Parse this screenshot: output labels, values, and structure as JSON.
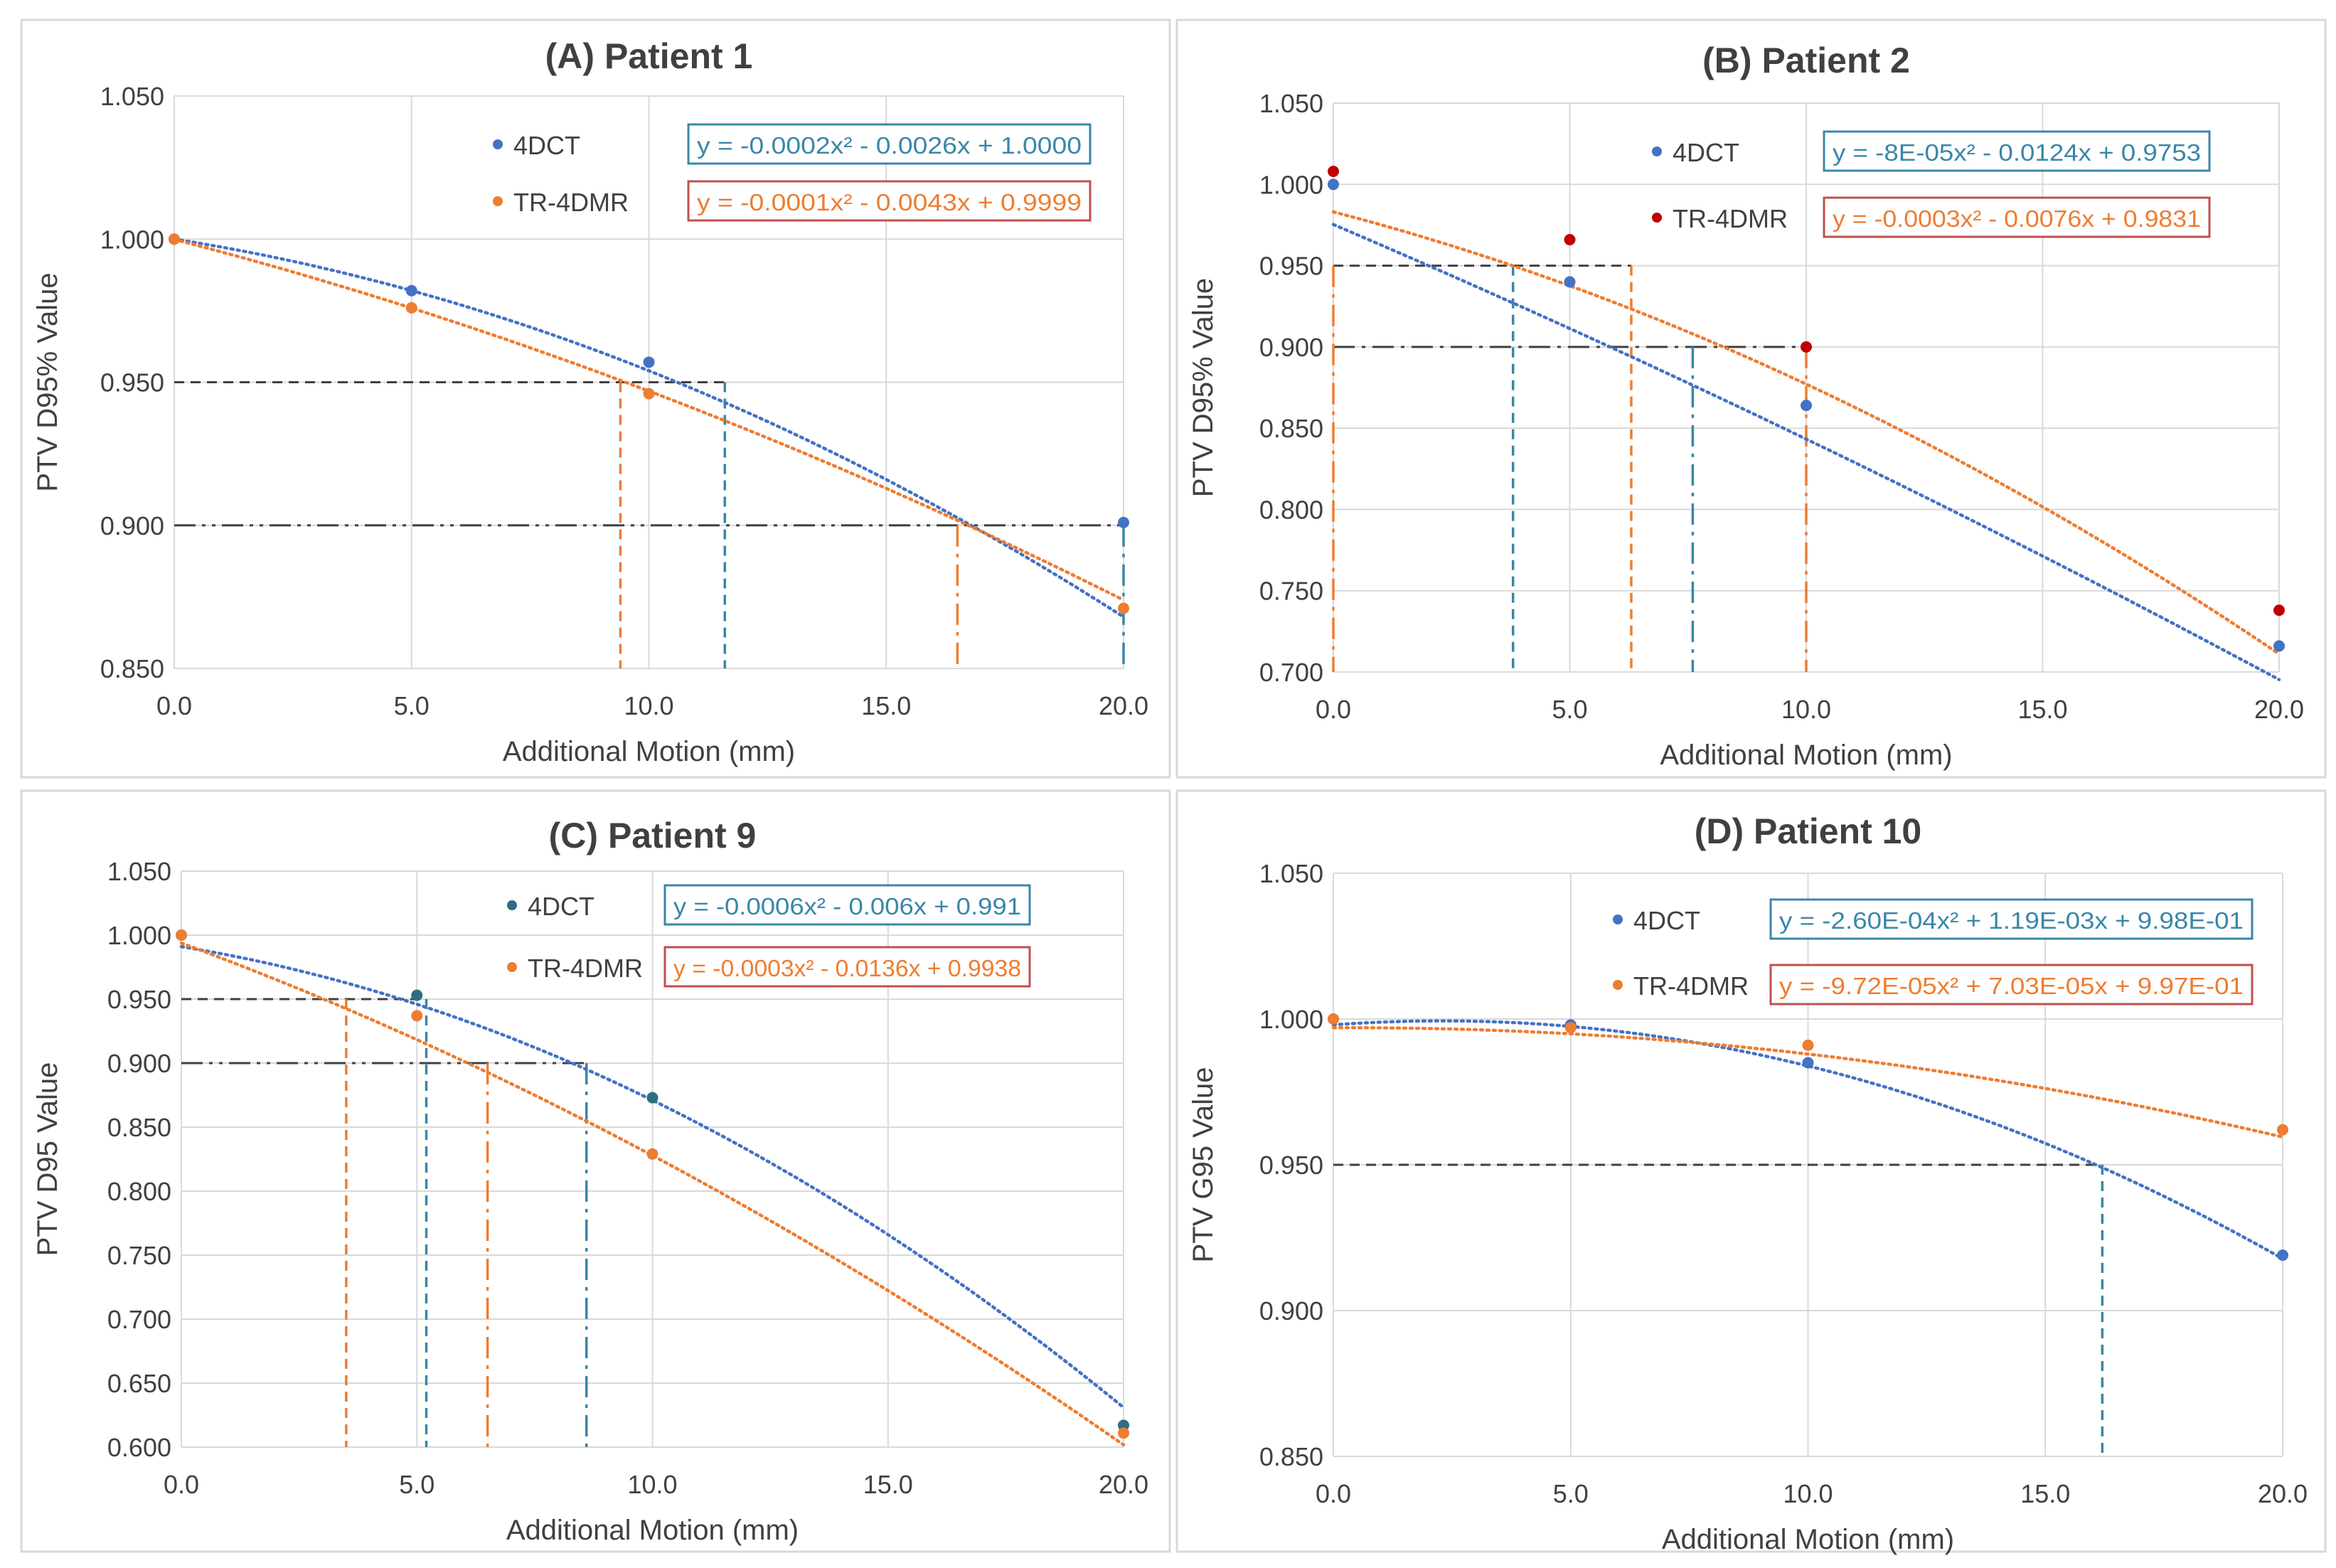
{
  "colors": {
    "series_4dct": "#4472C4",
    "series_tr4dmr": "#ED7D31",
    "marker_4dct_c": "#2E6E82",
    "marker_tr4dmr_b": "#C00000",
    "eq_box_4dct": "#3A86A8",
    "eq_box_tr4dmr": "#C0504D",
    "grid": "#D9D9D9",
    "text": "#404040",
    "guide_dark": "#404040"
  },
  "chart_data": [
    {
      "type": "scatter",
      "title": "(A) Patient 1",
      "xlabel": "Additional Motion (mm)",
      "ylabel": "PTV D95% Value",
      "xlim": [
        0,
        20
      ],
      "ylim": [
        0.85,
        1.05
      ],
      "xticks": [
        "0.0",
        "5.0",
        "10.0",
        "15.0",
        "20.0"
      ],
      "yticks": [
        "0.850",
        "0.900",
        "0.950",
        "1.000",
        "1.050"
      ],
      "grid": true,
      "series": [
        {
          "name": "4DCT",
          "x": [
            0,
            5,
            10,
            20
          ],
          "y": [
            1.0,
            0.982,
            0.957,
            0.901
          ],
          "trend": [
            -0.0002,
            -0.0026,
            1.0
          ],
          "equation": "y = -0.0002x² - 0.0026x + 1.0000"
        },
        {
          "name": "TR-4DMR",
          "x": [
            0,
            5,
            10,
            20
          ],
          "y": [
            1.0,
            0.976,
            0.946,
            0.871
          ],
          "trend": [
            -0.0001,
            -0.0043,
            0.9999
          ],
          "equation": "y = -0.0001x² - 0.0043x + 0.9999"
        }
      ],
      "guides": [
        {
          "y": 0.95,
          "x": [
            9.4,
            11.6
          ],
          "h_from": 0,
          "h_to": 11.6,
          "style": "dash",
          "color": "guide_dark"
        },
        {
          "y": 0.9,
          "x": [
            16.5,
            20.0
          ],
          "h_from": 0,
          "h_to": 20.0,
          "style": "dashdotdot",
          "color": "guide_dark"
        }
      ],
      "drops": [
        {
          "x": 9.4,
          "from": 0.95,
          "style": "dash",
          "series": 1
        },
        {
          "x": 11.6,
          "from": 0.95,
          "style": "dash",
          "series": 0
        },
        {
          "x": 16.5,
          "from": 0.9,
          "style": "dashdot",
          "series": 1
        },
        {
          "x": 20.0,
          "from": 0.9,
          "style": "dashdot",
          "series": 0
        }
      ]
    },
    {
      "type": "scatter",
      "title": "(B) Patient 2",
      "xlabel": "Additional Motion (mm)",
      "ylabel": "PTV D95% Value",
      "xlim": [
        0,
        20
      ],
      "ylim": [
        0.7,
        1.05
      ],
      "xticks": [
        "0.0",
        "5.0",
        "10.0",
        "15.0",
        "20.0"
      ],
      "yticks": [
        "0.700",
        "0.750",
        "0.800",
        "0.850",
        "0.900",
        "0.950",
        "1.000",
        "1.050"
      ],
      "grid": true,
      "series": [
        {
          "name": "4DCT",
          "x": [
            0,
            5,
            10,
            20
          ],
          "y": [
            1.0,
            0.94,
            0.864,
            0.716
          ],
          "trend": [
            -8e-05,
            -0.0124,
            0.9753
          ],
          "equation": "y = -8E-05x² - 0.0124x + 0.9753"
        },
        {
          "name": "TR-4DMR",
          "x": [
            0,
            5,
            10,
            20
          ],
          "y": [
            1.008,
            0.966,
            0.9,
            0.738
          ],
          "trend": [
            -0.0003,
            -0.0076,
            0.9831
          ],
          "equation": "y = -0.0003x² - 0.0076x + 0.9831"
        }
      ],
      "guides": [
        {
          "y": 0.95,
          "h_from": 0,
          "h_to": 6.3,
          "style": "dash",
          "color": "guide_dark"
        },
        {
          "y": 0.9,
          "h_from": 0,
          "h_to": 10.0,
          "style": "dashdot",
          "color": "guide_dark"
        }
      ],
      "drops": [
        {
          "x": 0.0,
          "from": 0.95,
          "style": "dashdot",
          "series": 1
        },
        {
          "x": 3.8,
          "from": 0.95,
          "style": "dash",
          "series": 0
        },
        {
          "x": 6.3,
          "from": 0.95,
          "style": "dash",
          "series": 1
        },
        {
          "x": 7.6,
          "from": 0.9,
          "style": "dashdot",
          "series": 0
        },
        {
          "x": 10.0,
          "from": 0.9,
          "style": "dashdot",
          "series": 1
        }
      ]
    },
    {
      "type": "scatter",
      "title": "(C) Patient 9",
      "xlabel": "Additional Motion (mm)",
      "ylabel": "PTV D95 Value",
      "xlim": [
        0,
        20
      ],
      "ylim": [
        0.6,
        1.05
      ],
      "xticks": [
        "0.0",
        "5.0",
        "10.0",
        "15.0",
        "20.0"
      ],
      "yticks": [
        "0.600",
        "0.650",
        "0.700",
        "0.750",
        "0.800",
        "0.850",
        "0.900",
        "0.950",
        "1.000",
        "1.050"
      ],
      "grid": true,
      "series": [
        {
          "name": "4DCT",
          "x": [
            0,
            5,
            10,
            20
          ],
          "y": [
            1.0,
            0.953,
            0.873,
            0.617
          ],
          "trend": [
            -0.0006,
            -0.006,
            0.991
          ],
          "equation": "y = -0.0006x² - 0.006x + 0.991"
        },
        {
          "name": "TR-4DMR",
          "x": [
            0,
            5,
            10,
            20
          ],
          "y": [
            1.0,
            0.937,
            0.829,
            0.611
          ],
          "trend": [
            -0.0003,
            -0.0136,
            0.9938
          ],
          "equation": "y = -0.0003x² - 0.0136x + 0.9938"
        }
      ],
      "guides": [
        {
          "y": 0.95,
          "h_from": 0,
          "h_to": 5.2,
          "style": "dash",
          "color": "guide_dark"
        },
        {
          "y": 0.9,
          "h_from": 0,
          "h_to": 8.6,
          "style": "dashdotdot",
          "color": "guide_dark"
        }
      ],
      "drops": [
        {
          "x": 3.5,
          "from": 0.95,
          "style": "dash",
          "series": 1
        },
        {
          "x": 5.2,
          "from": 0.95,
          "style": "dash",
          "series": 0
        },
        {
          "x": 6.5,
          "from": 0.9,
          "style": "dashdot",
          "series": 1
        },
        {
          "x": 8.6,
          "from": 0.9,
          "style": "dashdot",
          "series": 0
        }
      ]
    },
    {
      "type": "scatter",
      "title": "(D) Patient 10",
      "xlabel": "Additional Motion (mm)",
      "ylabel": "PTV G95 Value",
      "xlim": [
        0,
        20
      ],
      "ylim": [
        0.85,
        1.05
      ],
      "xticks": [
        "0.0",
        "5.0",
        "10.0",
        "15.0",
        "20.0"
      ],
      "yticks": [
        "0.850",
        "0.900",
        "0.950",
        "1.000",
        "1.050"
      ],
      "grid": true,
      "series": [
        {
          "name": "4DCT",
          "x": [
            0,
            5,
            10,
            20
          ],
          "y": [
            1.0,
            0.998,
            0.985,
            0.919
          ],
          "trend": [
            -0.00026,
            0.00119,
            0.998
          ],
          "equation": "y = -2.60E-04x² + 1.19E-03x + 9.98E-01"
        },
        {
          "name": "TR-4DMR",
          "x": [
            0,
            5,
            10,
            20
          ],
          "y": [
            1.0,
            0.997,
            0.991,
            0.962
          ],
          "trend": [
            -9.72e-05,
            7.03e-05,
            0.997
          ],
          "equation": "y = -9.72E-05x² + 7.03E-05x + 9.97E-01"
        }
      ],
      "guides": [
        {
          "y": 0.95,
          "h_from": 0,
          "h_to": 16.2,
          "style": "dash",
          "color": "guide_dark"
        }
      ],
      "drops": [
        {
          "x": 16.2,
          "from": 0.95,
          "style": "dash",
          "series": 0
        }
      ]
    }
  ]
}
